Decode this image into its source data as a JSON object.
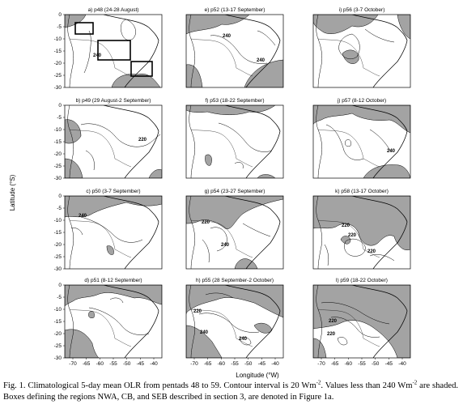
{
  "figure": {
    "ylabel": "Latitude (°S)",
    "xlabel": "Longitude (°W)",
    "y_ticks": [
      "0",
      "-5",
      "-10",
      "-15",
      "-20",
      "-25",
      "-30"
    ],
    "x_ticks": [
      "-70",
      "-65",
      "-60",
      "-55",
      "-50",
      "-45",
      "-40"
    ],
    "colors": {
      "shade": "#a3a3a3",
      "line": "#000000",
      "background": "#ffffff"
    },
    "panels": [
      {
        "title": "a) p48 (24-28 August)",
        "contour_labels": [
          "240"
        ]
      },
      {
        "title": "e) p52 (13-17 September)",
        "contour_labels": [
          "240",
          "240"
        ]
      },
      {
        "title": "i) p56 (3-7 October)",
        "contour_labels": []
      },
      {
        "title": "b) p49 (29 August-2 September)",
        "contour_labels": [
          "220"
        ]
      },
      {
        "title": "f) p53 (18-22 September)",
        "contour_labels": []
      },
      {
        "title": "j) p57 (8-12 October)",
        "contour_labels": [
          "240"
        ]
      },
      {
        "title": "c) p50 (3-7 September)",
        "contour_labels": [
          "240"
        ]
      },
      {
        "title": "g) p54 (23-27 September)",
        "contour_labels": [
          "220",
          "240"
        ]
      },
      {
        "title": "k) p58 (13-17 October)",
        "contour_labels": [
          "220",
          "220",
          "220"
        ]
      },
      {
        "title": "d) p51 (8-12 September)",
        "contour_labels": []
      },
      {
        "title": "h) p55 (28 September-2 October)",
        "contour_labels": [
          "220",
          "240",
          "240"
        ]
      },
      {
        "title": "l) p59 (18-22 October)",
        "contour_labels": [
          "220",
          "220"
        ]
      }
    ]
  },
  "caption": {
    "fig_label": "Fig. 1.",
    "text_a": " Climatological 5-day mean OLR from pentads 48 to 59. Contour interval is 20 Wm",
    "sup_a": "-2",
    "text_b": ". Values less than  240 Wm",
    "sup_b": "-2",
    "text_c": " are shaded. Boxes defining the regions NWA, CB, and SEB described in section 3, are denoted in Figure 1a."
  }
}
